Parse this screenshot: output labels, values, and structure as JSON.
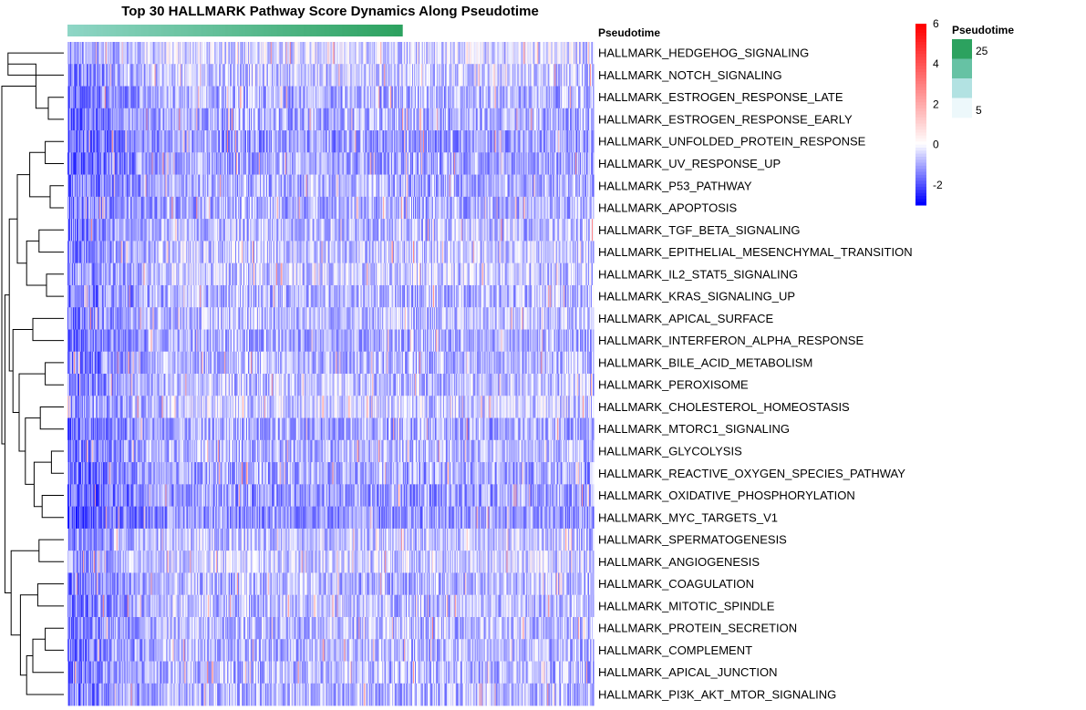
{
  "chart_data": {
    "type": "heatmap",
    "title": "Top 30 HALLMARK Pathway Score Dynamics Along Pseudotime",
    "annotation_label": "Pseudotime",
    "rows": [
      "HALLMARK_HEDGEHOG_SIGNALING",
      "HALLMARK_NOTCH_SIGNALING",
      "HALLMARK_ESTROGEN_RESPONSE_LATE",
      "HALLMARK_ESTROGEN_RESPONSE_EARLY",
      "HALLMARK_UNFOLDED_PROTEIN_RESPONSE",
      "HALLMARK_UV_RESPONSE_UP",
      "HALLMARK_P53_PATHWAY",
      "HALLMARK_APOPTOSIS",
      "HALLMARK_TGF_BETA_SIGNALING",
      "HALLMARK_EPITHELIAL_MESENCHYMAL_TRANSITION",
      "HALLMARK_IL2_STAT5_SIGNALING",
      "HALLMARK_KRAS_SIGNALING_UP",
      "HALLMARK_APICAL_SURFACE",
      "HALLMARK_INTERFERON_ALPHA_RESPONSE",
      "HALLMARK_BILE_ACID_METABOLISM",
      "HALLMARK_PEROXISOME",
      "HALLMARK_CHOLESTEROL_HOMEOSTASIS",
      "HALLMARK_MTORC1_SIGNALING",
      "HALLMARK_GLYCOLYSIS",
      "HALLMARK_REACTIVE_OXYGEN_SPECIES_PATHWAY",
      "HALLMARK_OXIDATIVE_PHOSPHORYLATION",
      "HALLMARK_MYC_TARGETS_V1",
      "HALLMARK_SPERMATOGENESIS",
      "HALLMARK_ANGIOGENESIS",
      "HALLMARK_COAGULATION",
      "HALLMARK_MITOTIC_SPINDLE",
      "HALLMARK_PROTEIN_SECRETION",
      "HALLMARK_COMPLEMENT",
      "HALLMARK_APICAL_JUNCTION",
      "HALLMARK_PI3K_AKT_MTOR_SIGNALING"
    ],
    "color_scale": {
      "ticks": [
        6,
        4,
        2,
        0,
        -2
      ],
      "range": [
        -3,
        6
      ],
      "low_color": "#0000ff",
      "mid_color": "#ffffff",
      "high_color": "#ff0000"
    },
    "annotation_legend": {
      "title": "Pseudotime",
      "ticks": [
        25,
        5
      ],
      "colors": [
        "#2ca25f",
        "#66c2a4",
        "#b2e2e2",
        "#edf8fb"
      ]
    },
    "annotation_bar": {
      "low_color": "#8fd6c6",
      "high_color": "#2ca25f",
      "note": "columns ordered by pseudotime; bar shown over leading portion of columns"
    },
    "approx_columns": 580,
    "row_mean_levels": [
      -0.4,
      -0.6,
      -0.9,
      -0.9,
      -1.1,
      -1.0,
      -0.9,
      -0.9,
      -0.7,
      -0.6,
      -0.6,
      -0.8,
      -0.7,
      -0.9,
      -0.8,
      -0.7,
      -0.5,
      -0.9,
      -0.8,
      -1.0,
      -1.1,
      -1.2,
      -0.6,
      -0.5,
      -0.8,
      -0.7,
      -0.7,
      -0.8,
      -0.8,
      -0.8
    ],
    "dendrogram_merges": [
      [
        0,
        1,
        0.9
      ],
      [
        2,
        3,
        0.25
      ],
      [
        4,
        5,
        0.3
      ],
      [
        6,
        7,
        0.22
      ],
      [
        30,
        31,
        0.45
      ],
      [
        32,
        33,
        0.55
      ],
      [
        8,
        9,
        0.4
      ],
      [
        10,
        11,
        0.28
      ],
      [
        36,
        37,
        0.6
      ],
      [
        35,
        38,
        0.75
      ],
      [
        12,
        13,
        0.5
      ],
      [
        14,
        15,
        0.3
      ],
      [
        16,
        17,
        0.38
      ],
      [
        18,
        19,
        0.2
      ],
      [
        20,
        21,
        0.35
      ],
      [
        43,
        44,
        0.48
      ],
      [
        42,
        45,
        0.62
      ],
      [
        41,
        46,
        0.72
      ],
      [
        40,
        47,
        0.82
      ],
      [
        39,
        48,
        0.88
      ],
      [
        22,
        23,
        0.4
      ],
      [
        24,
        25,
        0.42
      ],
      [
        26,
        27,
        0.3
      ],
      [
        52,
        28,
        0.5
      ],
      [
        53,
        29,
        0.6
      ],
      [
        51,
        54,
        0.7
      ],
      [
        50,
        55,
        0.85
      ],
      [
        49,
        56,
        0.95
      ],
      [
        34,
        57,
        1.0
      ]
    ]
  }
}
